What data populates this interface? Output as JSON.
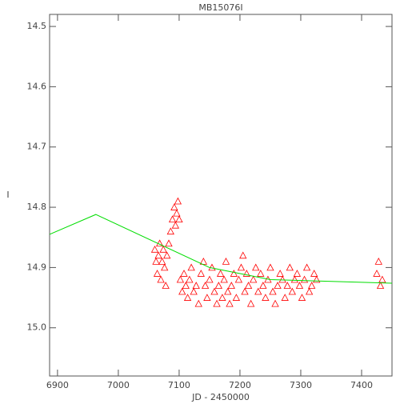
{
  "chart_data": {
    "type": "scatter",
    "title": "MB15076I",
    "x_label": "JD - 2450000",
    "y_label": "I",
    "xlim": [
      6887,
      7450
    ],
    "xticks": [
      6900,
      7000,
      7100,
      7200,
      7300,
      7400
    ],
    "ylim": [
      15.08,
      14.48
    ],
    "yticks": [
      14.5,
      14.6,
      14.7,
      14.8,
      14.9,
      {
        "value": 15,
        "label": "15.0"
      }
    ],
    "series": [
      {
        "mode": "markers",
        "color": "#ff0000",
        "x": [
          7060,
          7062,
          7064,
          7066,
          7068,
          7070,
          7072,
          7074,
          7076,
          7078,
          7080,
          7083,
          7086,
          7089,
          7092,
          7094,
          7096,
          7098,
          7100,
          7102,
          7105,
          7108,
          7111,
          7114,
          7117,
          7120,
          7124,
          7128,
          7132,
          7136,
          7140,
          7143,
          7146,
          7150,
          7154,
          7158,
          7162,
          7165,
          7168,
          7171,
          7174,
          7177,
          7180,
          7183,
          7186,
          7190,
          7194,
          7198,
          7202,
          7205,
          7208,
          7211,
          7214,
          7218,
          7222,
          7226,
          7230,
          7234,
          7238,
          7242,
          7246,
          7250,
          7254,
          7258,
          7262,
          7266,
          7270,
          7274,
          7278,
          7282,
          7286,
          7290,
          7294,
          7298,
          7302,
          7306,
          7310,
          7314,
          7318,
          7322,
          7326,
          7425,
          7428,
          7431,
          7434
        ],
        "values": [
          14.87,
          14.89,
          14.91,
          14.88,
          14.86,
          14.92,
          14.89,
          14.87,
          14.9,
          14.93,
          14.88,
          14.86,
          14.84,
          14.82,
          14.8,
          14.83,
          14.81,
          14.79,
          14.82,
          14.92,
          14.94,
          14.91,
          14.93,
          14.95,
          14.92,
          14.9,
          14.94,
          14.93,
          14.96,
          14.91,
          14.89,
          14.93,
          14.95,
          14.92,
          14.9,
          14.94,
          14.96,
          14.93,
          14.91,
          14.95,
          14.92,
          14.89,
          14.94,
          14.96,
          14.93,
          14.91,
          14.95,
          14.92,
          14.9,
          14.88,
          14.94,
          14.91,
          14.93,
          14.96,
          14.92,
          14.9,
          14.94,
          14.91,
          14.93,
          14.95,
          14.92,
          14.9,
          14.94,
          14.96,
          14.93,
          14.91,
          14.92,
          14.95,
          14.93,
          14.9,
          14.94,
          14.92,
          14.91,
          14.93,
          14.95,
          14.92,
          14.9,
          14.94,
          14.93,
          14.91,
          14.92,
          14.91,
          14.89,
          14.93,
          14.92
        ]
      },
      {
        "mode": "lines",
        "color": "#00dd00",
        "x": [
          6887,
          6963,
          7150,
          7250,
          7450
        ],
        "values": [
          14.845,
          14.812,
          14.9,
          14.92,
          14.926
        ]
      }
    ]
  }
}
